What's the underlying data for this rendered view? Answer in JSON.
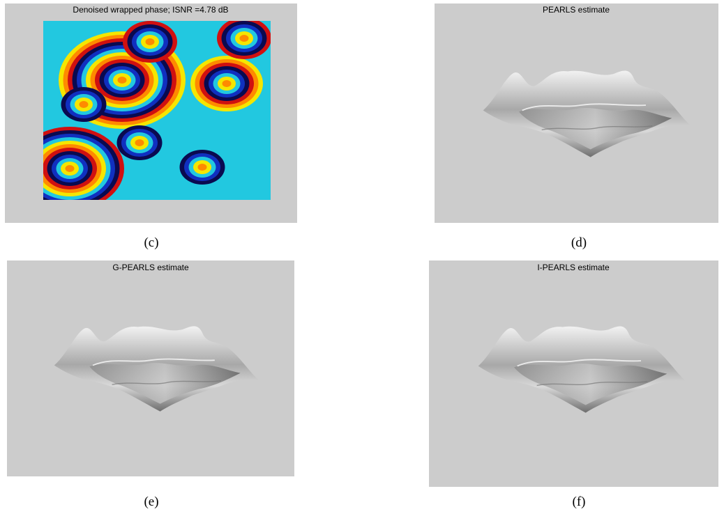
{
  "panels": [
    {
      "title": "Denoised wrapped phase; ISNR =4.78 dB",
      "caption": "(c)"
    },
    {
      "title": "PEARLS estimate",
      "caption": "(d)"
    },
    {
      "title": "G-PEARLS estimate",
      "caption": "(e)"
    },
    {
      "title": "I-PEARLS estimate",
      "caption": "(f)"
    }
  ]
}
